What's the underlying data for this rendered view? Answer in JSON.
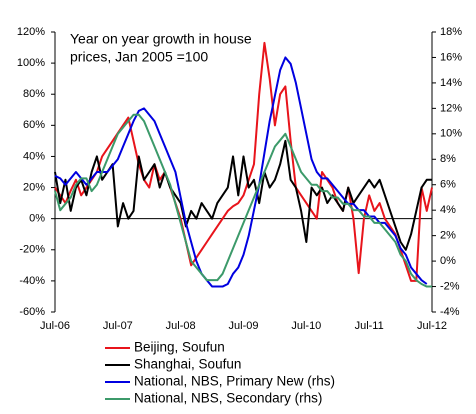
{
  "chart_data": {
    "type": "line",
    "title": [
      "Year on year growth in house",
      "prices, Jan 2005 =100"
    ],
    "categories": [
      "Jul-06",
      null,
      null,
      null,
      null,
      null,
      null,
      null,
      null,
      null,
      null,
      null,
      "Jul-07",
      null,
      null,
      null,
      null,
      null,
      null,
      null,
      null,
      null,
      null,
      null,
      "Jul-08",
      null,
      null,
      null,
      null,
      null,
      null,
      null,
      null,
      null,
      null,
      null,
      "Jul-09",
      null,
      null,
      null,
      null,
      null,
      null,
      null,
      null,
      null,
      null,
      null,
      "Jul-10",
      null,
      null,
      null,
      null,
      null,
      null,
      null,
      null,
      null,
      null,
      null,
      "Jul-11",
      null,
      null,
      null,
      null,
      null,
      null,
      null,
      null,
      null,
      null,
      null,
      "Jul-12"
    ],
    "series": [
      {
        "name": "Beijing, Soufun",
        "color": "#e8141b",
        "axis": "y",
        "values": [
          20,
          15,
          10,
          18,
          25,
          15,
          20,
          25,
          30,
          40,
          45,
          50,
          55,
          60,
          65,
          50,
          35,
          25,
          20,
          35,
          25,
          30,
          20,
          10,
          0,
          -15,
          -30,
          -25,
          -20,
          -15,
          -10,
          -5,
          0,
          5,
          8,
          10,
          15,
          25,
          35,
          80,
          113,
          90,
          60,
          80,
          85,
          50,
          20,
          15,
          10,
          5,
          0,
          30,
          25,
          20,
          10,
          5,
          20,
          0,
          -35,
          0,
          15,
          5,
          10,
          0,
          -5,
          -10,
          -20,
          -30,
          -40,
          -40,
          20,
          5,
          20
        ]
      },
      {
        "name": "Shanghai, Soufun",
        "color": "#000000",
        "axis": "y",
        "values": [
          30,
          10,
          25,
          5,
          20,
          25,
          15,
          30,
          40,
          25,
          30,
          35,
          -5,
          10,
          0,
          5,
          40,
          25,
          30,
          35,
          20,
          30,
          20,
          15,
          10,
          -5,
          5,
          0,
          10,
          5,
          0,
          10,
          15,
          20,
          40,
          15,
          40,
          20,
          25,
          10,
          30,
          20,
          25,
          35,
          50,
          25,
          20,
          5,
          -15,
          20,
          15,
          20,
          10,
          15,
          10,
          5,
          20,
          10,
          15,
          20,
          25,
          20,
          25,
          15,
          5,
          -5,
          -15,
          -20,
          -10,
          5,
          20,
          25,
          25
        ]
      },
      {
        "name": "National, NBS, Primary New (rhs)",
        "color": "#0000e0",
        "axis": "y2",
        "values": [
          6.7,
          6.5,
          6,
          6.5,
          7,
          6.5,
          6,
          6.5,
          7,
          7,
          7,
          7.5,
          8,
          9,
          10,
          11,
          11.8,
          12,
          11.5,
          11,
          10,
          9,
          8,
          7,
          5,
          3,
          1.5,
          0,
          -1,
          -1.5,
          -2,
          -2,
          -2,
          -1.8,
          -1,
          -0.5,
          0.5,
          2,
          4,
          6,
          8.5,
          11,
          13,
          15,
          16,
          15.5,
          14,
          12,
          10,
          8,
          7,
          6.5,
          6.5,
          6,
          5.5,
          5,
          4.5,
          4.5,
          4,
          4,
          3.5,
          3.5,
          3,
          3,
          2.5,
          2,
          1,
          0.5,
          -0.5,
          -1,
          -1.5,
          -1.8,
          null
        ]
      },
      {
        "name": "National, NBS, Secondary (rhs)",
        "color": "#3c9a6a",
        "axis": "y2",
        "values": [
          5.5,
          4,
          4.5,
          5,
          6,
          6.5,
          6.5,
          5.5,
          6,
          7,
          8,
          9,
          10,
          10.5,
          11,
          11.5,
          11.5,
          11,
          10,
          9,
          8,
          7,
          6,
          4.5,
          3,
          1.5,
          0,
          -0.5,
          -1,
          -1.5,
          -1.5,
          -1.5,
          -1,
          0,
          1,
          2,
          3,
          4,
          5,
          6,
          7,
          8,
          9,
          9.5,
          10,
          9,
          8,
          7,
          6.5,
          6,
          6,
          5.5,
          5.5,
          5,
          5,
          4.5,
          4.5,
          4,
          4,
          3.5,
          3.5,
          3,
          3,
          2.5,
          2,
          1.5,
          0.5,
          0,
          -1,
          -1.5,
          -1.8,
          -2,
          -2
        ]
      }
    ],
    "ylim": [
      -60,
      120
    ],
    "yticks": [
      {
        "value": -60,
        "label": "-60%"
      },
      {
        "value": -40,
        "label": "-40%"
      },
      {
        "value": -20,
        "label": "-20%"
      },
      {
        "value": 0,
        "label": "0%"
      },
      {
        "value": 20,
        "label": "20%"
      },
      {
        "value": 40,
        "label": "40%"
      },
      {
        "value": 60,
        "label": "60%"
      },
      {
        "value": 80,
        "label": "80%"
      },
      {
        "value": 100,
        "label": "100%"
      },
      {
        "value": 120,
        "label": "120%"
      }
    ],
    "y2lim": [
      -4,
      18
    ],
    "y2ticks": [
      {
        "value": -4,
        "label": "-4%"
      },
      {
        "value": -2,
        "label": "-2%"
      },
      {
        "value": 0,
        "label": "0%"
      },
      {
        "value": 2,
        "label": "2%"
      },
      {
        "value": 4,
        "label": "4%"
      },
      {
        "value": 6,
        "label": "6%"
      },
      {
        "value": 8,
        "label": "8%"
      },
      {
        "value": 10,
        "label": "10%"
      },
      {
        "value": 12,
        "label": "12%"
      },
      {
        "value": 14,
        "label": "14%"
      },
      {
        "value": 16,
        "label": "16%"
      },
      {
        "value": 18,
        "label": "18%"
      }
    ],
    "grid": false
  }
}
